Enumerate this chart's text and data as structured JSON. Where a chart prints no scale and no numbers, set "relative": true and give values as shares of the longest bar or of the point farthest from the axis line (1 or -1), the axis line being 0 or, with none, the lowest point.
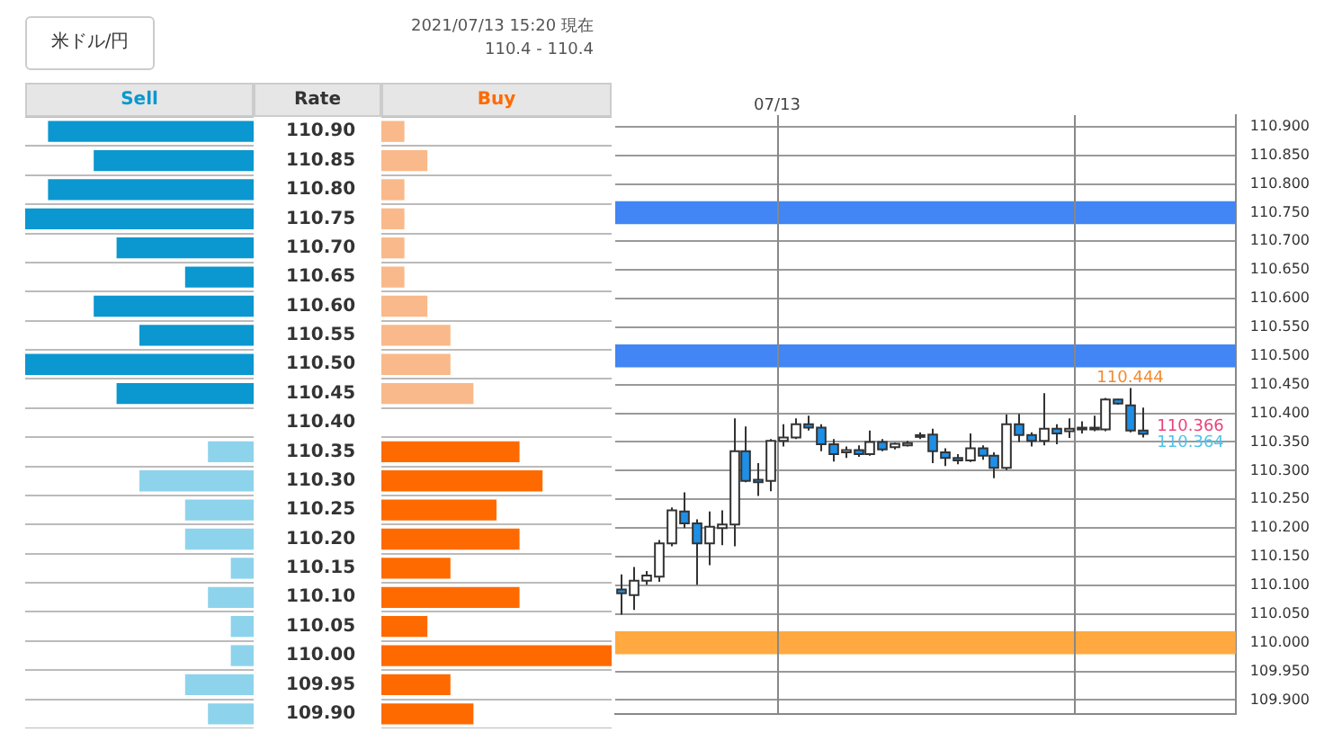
{
  "chart_data": [
    {
      "type": "bar",
      "orientation": "horizontal",
      "relative": true,
      "title": "米ドル/円",
      "ylabel": "Rate",
      "tick_labels": "y",
      "grid": "y",
      "legend": false,
      "categories": [
        "110.90",
        "110.85",
        "110.80",
        "110.75",
        "110.70",
        "110.65",
        "110.60",
        "110.55",
        "110.50",
        "110.45",
        "110.40",
        "110.35",
        "110.30",
        "110.25",
        "110.20",
        "110.15",
        "110.10",
        "110.05",
        "110.00",
        "109.95",
        "109.90"
      ],
      "series": [
        {
          "name": "Sell",
          "color": "#0b97cf",
          "colors": [
            "#0b97cf",
            "#0b97cf",
            "#0b97cf",
            "#0b97cf",
            "#0b97cf",
            "#0b97cf",
            "#0b97cf",
            "#0b97cf",
            "#0b97cf",
            "#0b97cf",
            "#0b97cf",
            "#8ed3ec",
            "#8ed3ec",
            "#8ed3ec",
            "#8ed3ec",
            "#8ed3ec",
            "#8ed3ec",
            "#8ed3ec",
            "#8ed3ec",
            "#8ed3ec",
            "#8ed3ec"
          ],
          "values": [
            0.9,
            0.7,
            0.9,
            1,
            0.6,
            0.3,
            0.7,
            0.5,
            1,
            0.6,
            null,
            0.2,
            0.5,
            0.3,
            0.3,
            0.1,
            0.2,
            0.1,
            0.1,
            0.3,
            0.2
          ]
        }
      ]
    },
    {
      "type": "bar",
      "orientation": "horizontal",
      "relative": true,
      "subtitle": "2021/07/13 15:20 現在",
      "annotations": [
        "110.4 - 110.4"
      ],
      "tick_labels": false,
      "grid": "y",
      "legend": false,
      "categories": [
        "110.90",
        "110.85",
        "110.80",
        "110.75",
        "110.70",
        "110.65",
        "110.60",
        "110.55",
        "110.50",
        "110.45",
        "110.40",
        "110.35",
        "110.30",
        "110.25",
        "110.20",
        "110.15",
        "110.10",
        "110.05",
        "110.00",
        "109.95",
        "109.90"
      ],
      "series": [
        {
          "name": "Buy",
          "color": "#ff6a00",
          "colors": [
            "#f9b98a",
            "#f9b98a",
            "#f9b98a",
            "#f9b98a",
            "#f9b98a",
            "#f9b98a",
            "#f9b98a",
            "#f9b98a",
            "#f9b98a",
            "#f9b98a",
            "#f9b98a",
            "#ff6a00",
            "#ff6a00",
            "#ff6a00",
            "#ff6a00",
            "#ff6a00",
            "#ff6a00",
            "#ff6a00",
            "#ff6a00",
            "#ff6a00",
            "#ff6a00"
          ],
          "values": [
            0.1,
            0.2,
            0.1,
            0.1,
            0.1,
            0.1,
            0.2,
            0.3,
            0.3,
            0.4,
            null,
            0.6,
            0.7,
            0.5,
            0.6,
            0.3,
            0.6,
            0.2,
            1,
            0.3,
            0.4
          ]
        }
      ]
    },
    {
      "type": "candlestick",
      "tick_labels": "y",
      "grid": "y",
      "legend": false,
      "colors": [
        "#1e8fe6",
        "#ffffff",
        "#ffffff",
        "#ffffff",
        "#ffffff",
        "#1e8fe6",
        "#1e8fe6",
        "#ffffff",
        "#ffffff",
        "#ffffff",
        "#1e8fe6",
        "#1e8fe6",
        "#ffffff",
        "#ffffff",
        "#ffffff",
        "#1e8fe6",
        "#1e8fe6",
        "#1e8fe6",
        "#ffffff",
        "#1e8fe6",
        "#ffffff",
        "#1e8fe6",
        "#ffffff",
        "#ffffff",
        "#ffffff",
        "#1e8fe6",
        "#1e8fe6",
        "#1e8fe6",
        "#ffffff",
        "#1e8fe6",
        "#1e8fe6",
        "#ffffff",
        "#1e8fe6",
        "#1e8fe6",
        "#ffffff",
        "#1e8fe6",
        "#ffffff",
        "#ffffff",
        "#ffffff",
        "#ffffff",
        "#1e8fe6",
        "#1e8fe6",
        "#1e8fe6",
        null,
        null,
        null,
        null,
        null,
        null,
        null
      ],
      "annotations": [
        "07/13",
        {
          "text": "110.444",
          "y": 110.444
        },
        "110.366",
        "110.364"
      ],
      "bands": [
        {
          "axis": "y",
          "from": 110.73,
          "to": 110.77,
          "color": "#4285f4"
        },
        {
          "axis": "y",
          "from": 110.48,
          "to": 110.52,
          "color": "#4285f4"
        },
        {
          "axis": "y",
          "from": 109.98,
          "to": 110.02,
          "color": "#ffa940"
        }
      ],
      "ylim": [
        109.875,
        110.92
      ],
      "yticks": [
        {
          "value": 109.9,
          "label": "109.900"
        },
        {
          "value": 109.95,
          "label": "109.950"
        },
        {
          "value": 110,
          "label": "110.000"
        },
        {
          "value": 110.05,
          "label": "110.050"
        },
        {
          "value": 110.1,
          "label": "110.100"
        },
        {
          "value": 110.15,
          "label": "110.150"
        },
        {
          "value": 110.2,
          "label": "110.200"
        },
        {
          "value": 110.25,
          "label": "110.250"
        },
        {
          "value": 110.3,
          "label": "110.300"
        },
        {
          "value": 110.35,
          "label": "110.350"
        },
        {
          "value": 110.4,
          "label": "110.400"
        },
        {
          "value": 110.45,
          "label": "110.450"
        },
        {
          "value": 110.5,
          "label": "110.500"
        },
        {
          "value": 110.55,
          "label": "110.550"
        },
        {
          "value": 110.6,
          "label": "110.600"
        },
        {
          "value": 110.65,
          "label": "110.650"
        },
        {
          "value": 110.7,
          "label": "110.700"
        },
        {
          "value": 110.75,
          "label": "110.750"
        },
        {
          "value": 110.8,
          "label": "110.800"
        },
        {
          "value": 110.85,
          "label": "110.850"
        },
        {
          "value": 110.9,
          "label": "110.900"
        }
      ],
      "categories": [
        null,
        null,
        null,
        null,
        null,
        null,
        null,
        null,
        null,
        null,
        null,
        null,
        null,
        null,
        null,
        null,
        null,
        null,
        null,
        null,
        null,
        null,
        null,
        null,
        null,
        null,
        null,
        null,
        null,
        null,
        null,
        null,
        null,
        null,
        null,
        null,
        null,
        null,
        null,
        null,
        null,
        null,
        null,
        null,
        null,
        null,
        null,
        null,
        null,
        null
      ],
      "ohlc": [
        [
          110.093,
          110.119,
          110.049,
          110.086
        ],
        [
          110.083,
          110.132,
          110.057,
          110.108
        ],
        [
          110.108,
          110.125,
          110.101,
          110.117
        ],
        [
          110.115,
          110.179,
          110.106,
          110.173
        ],
        [
          110.173,
          110.236,
          110.168,
          110.231
        ],
        [
          110.229,
          110.262,
          110.2,
          110.208
        ],
        [
          110.208,
          110.215,
          110.101,
          110.173
        ],
        [
          110.173,
          110.229,
          110.135,
          110.202
        ],
        [
          110.2,
          110.231,
          110.17,
          110.206
        ],
        [
          110.206,
          110.391,
          110.168,
          110.334
        ],
        [
          110.334,
          110.377,
          110.28,
          110.282
        ],
        [
          110.284,
          110.313,
          110.256,
          110.28
        ],
        [
          110.282,
          110.355,
          110.264,
          110.352
        ],
        [
          110.352,
          110.381,
          110.342,
          110.358
        ],
        [
          110.358,
          110.391,
          110.355,
          110.381
        ],
        [
          110.381,
          110.396,
          110.37,
          110.375
        ],
        [
          110.375,
          110.381,
          110.334,
          110.346
        ],
        [
          110.346,
          110.355,
          110.316,
          110.329
        ],
        [
          110.332,
          110.342,
          110.322,
          110.336
        ],
        [
          110.336,
          110.344,
          110.324,
          110.329
        ],
        [
          110.329,
          110.37,
          110.326,
          110.35
        ],
        [
          110.35,
          110.355,
          110.334,
          110.337
        ],
        [
          110.341,
          110.349,
          110.337,
          110.347
        ],
        [
          110.344,
          110.352,
          110.342,
          110.348
        ],
        [
          110.359,
          110.367,
          110.355,
          110.362
        ],
        [
          110.363,
          110.373,
          110.313,
          110.334
        ],
        [
          110.332,
          110.339,
          110.308,
          110.322
        ],
        [
          110.322,
          110.329,
          110.311,
          110.318
        ],
        [
          110.318,
          110.365,
          110.315,
          110.339
        ],
        [
          110.339,
          110.344,
          110.319,
          110.326
        ],
        [
          110.326,
          110.332,
          110.287,
          110.305
        ],
        [
          110.305,
          110.398,
          110.301,
          110.381
        ],
        [
          110.381,
          110.399,
          110.35,
          110.362
        ],
        [
          110.362,
          110.367,
          110.342,
          110.352
        ],
        [
          110.352,
          110.435,
          110.344,
          110.373
        ],
        [
          110.373,
          110.381,
          110.346,
          110.365
        ],
        [
          110.369,
          110.391,
          110.357,
          110.373
        ],
        [
          110.373,
          110.386,
          110.365,
          110.375
        ],
        [
          110.372,
          110.396,
          110.369,
          110.375
        ],
        [
          110.372,
          110.427,
          110.369,
          110.424
        ],
        [
          110.424,
          110.425,
          110.415,
          110.417
        ],
        [
          110.414,
          110.444,
          110.367,
          110.37
        ],
        [
          110.37,
          110.41,
          110.358,
          110.364
        ],
        null,
        null,
        null,
        null,
        null,
        null,
        null
      ]
    }
  ]
}
